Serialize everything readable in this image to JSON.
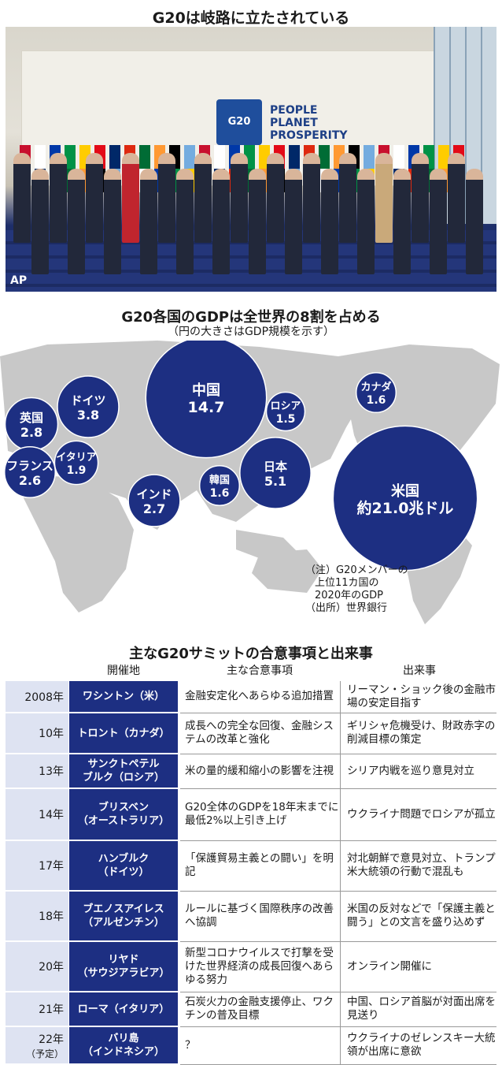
{
  "header": {
    "title": "G20は岐路に立たされている"
  },
  "photo": {
    "credit": "AP",
    "banner_lines": [
      "PEOPLE",
      "PLANET",
      "PROSPERITY"
    ],
    "logo_text": "G20"
  },
  "chart_data": {
    "type": "bubble-map",
    "title": "G20各国のGDPは全世界の8割を占める",
    "subtitle": "（円の大きさはGDP規模を示す）",
    "unit_label": "兆ドル",
    "bubbles": [
      {
        "name": "米国",
        "value": 21.0,
        "label": "約21.0兆ドル"
      },
      {
        "name": "中国",
        "value": 14.7,
        "label": "14.7"
      },
      {
        "name": "日本",
        "value": 5.1,
        "label": "5.1"
      },
      {
        "name": "ドイツ",
        "value": 3.8,
        "label": "3.8"
      },
      {
        "name": "英国",
        "value": 2.8,
        "label": "2.8"
      },
      {
        "name": "インド",
        "value": 2.7,
        "label": "2.7"
      },
      {
        "name": "フランス",
        "value": 2.6,
        "label": "2.6"
      },
      {
        "name": "イタリア",
        "value": 1.9,
        "label": "1.9"
      },
      {
        "name": "カナダ",
        "value": 1.6,
        "label": "1.6"
      },
      {
        "name": "韓国",
        "value": 1.6,
        "label": "1.6"
      },
      {
        "name": "ロシア",
        "value": 1.5,
        "label": "1.5"
      }
    ],
    "notes": [
      "（注）G20メンバーの",
      "上位11カ国の",
      "2020年のGDP",
      "（出所）世界銀行"
    ],
    "color": "#1d2f82"
  },
  "table": {
    "title": "主なG20サミットの合意事項と出来事",
    "headers": [
      "開催地",
      "主な合意事項",
      "出来事"
    ],
    "rows": [
      {
        "year": "2008年",
        "year_sub": "",
        "venue": [
          "ワシントン（米）"
        ],
        "agreement": "金融安定化へあらゆる追加措置",
        "event": "リーマン・ショック後の金融市場の安定目指す"
      },
      {
        "year": "10年",
        "year_sub": "",
        "venue": [
          "トロント（カナダ）"
        ],
        "agreement": "成長への完全な回復、金融システムの改革と強化",
        "event": "ギリシャ危機受け、財政赤字の削減目標の策定"
      },
      {
        "year": "13年",
        "year_sub": "",
        "venue": [
          "サンクトペテル",
          "ブルク（ロシア）"
        ],
        "agreement": "米の量的緩和縮小の影響を注視",
        "event": "シリア内戦を巡り意見対立"
      },
      {
        "year": "14年",
        "year_sub": "",
        "venue": [
          "ブリスベン",
          "（オーストラリア）"
        ],
        "agreement": "G20全体のGDPを18年末までに最低2%以上引き上げ",
        "event": "ウクライナ問題でロシアが孤立"
      },
      {
        "year": "17年",
        "year_sub": "",
        "venue": [
          "ハンブルク",
          "（ドイツ）"
        ],
        "agreement": "「保護貿易主義との闘い」を明記",
        "event": "対北朝鮮で意見対立、トランプ米大統領の行動で混乱も"
      },
      {
        "year": "18年",
        "year_sub": "",
        "venue": [
          "ブエノスアイレス",
          "（アルゼンチン）"
        ],
        "agreement": "ルールに基づく国際秩序の改善へ協調",
        "event": "米国の反対などで「保護主義と闘う」との文言を盛り込めず"
      },
      {
        "year": "20年",
        "year_sub": "",
        "venue": [
          "リヤド",
          "（サウジアラビア）"
        ],
        "agreement": "新型コロナウイルスで打撃を受けた世界経済の成長回復へあらゆる努力",
        "event": "オンライン開催に"
      },
      {
        "year": "21年",
        "year_sub": "",
        "venue": [
          "ローマ（イタリア）"
        ],
        "agreement": "石炭火力の金融支援停止、ワクチンの普及目標",
        "event": "中国、ロシア首脳が対面出席を見送り"
      },
      {
        "year": "22年",
        "year_sub": "（予定）",
        "venue": [
          "バリ島",
          "（インドネシア）"
        ],
        "agreement": "？",
        "event": "ウクライナのゼレンスキー大統領が出席に意欲"
      }
    ]
  }
}
